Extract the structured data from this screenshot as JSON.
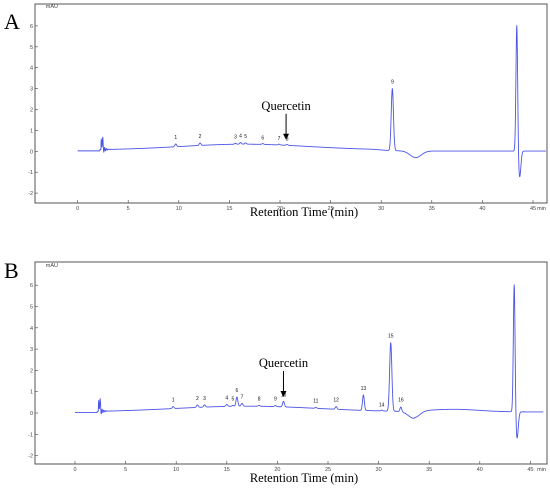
{
  "chart_data": [
    {
      "panel": "A",
      "type": "line",
      "xlabel": "Retention Time (min)",
      "x_unit": "min",
      "y_unit": "mAU",
      "xlim": [
        0,
        46.5
      ],
      "ylim": [
        -2,
        7
      ],
      "xticks": [
        0,
        5,
        10,
        15,
        20,
        25,
        30,
        35,
        40,
        45
      ],
      "yticks": [
        -2,
        -1,
        0,
        1,
        2,
        3,
        4,
        5,
        6
      ],
      "annotation": {
        "text": "Quercetin",
        "x": 20.6
      },
      "peaks": [
        {
          "label": "1",
          "x": 9.7,
          "y": 0.35
        },
        {
          "label": "2",
          "x": 12.1,
          "y": 0.4
        },
        {
          "label": "3",
          "x": 15.6,
          "y": 0.38
        },
        {
          "label": "4",
          "x": 16.1,
          "y": 0.42
        },
        {
          "label": "5",
          "x": 16.6,
          "y": 0.4
        },
        {
          "label": "6",
          "x": 18.3,
          "y": 0.32
        },
        {
          "label": "7",
          "x": 19.9,
          "y": 0.3
        },
        {
          "label": "8",
          "x": 20.7,
          "y": 0.28
        },
        {
          "label": "9",
          "x": 31.1,
          "y": 3.0
        }
      ],
      "other_peaks": [
        {
          "x": 43.4,
          "y": 6.1
        }
      ]
    },
    {
      "panel": "B",
      "type": "line",
      "xlabel": "Retention Time (min)",
      "x_unit": "min",
      "y_unit": "mAU",
      "xlim": [
        0,
        46.5
      ],
      "ylim": [
        -2,
        7
      ],
      "xticks": [
        0,
        5,
        10,
        15,
        20,
        25,
        30,
        35,
        40,
        45
      ],
      "yticks": [
        -2,
        -1,
        0,
        1,
        2,
        3,
        4,
        5,
        6
      ],
      "annotation": {
        "text": "Quercetin",
        "x": 20.6
      },
      "peaks": [
        {
          "label": "1",
          "x": 9.7,
          "y": 0.3
        },
        {
          "label": "2",
          "x": 12.1,
          "y": 0.38
        },
        {
          "label": "3",
          "x": 12.8,
          "y": 0.38
        },
        {
          "label": "4",
          "x": 15.0,
          "y": 0.4
        },
        {
          "label": "5",
          "x": 15.6,
          "y": 0.35
        },
        {
          "label": "6",
          "x": 16.0,
          "y": 0.75
        },
        {
          "label": "7",
          "x": 16.5,
          "y": 0.45
        },
        {
          "label": "8",
          "x": 18.2,
          "y": 0.35
        },
        {
          "label": "9",
          "x": 19.8,
          "y": 0.35
        },
        {
          "label": "10",
          "x": 20.6,
          "y": 0.55
        },
        {
          "label": "11",
          "x": 23.8,
          "y": 0.25
        },
        {
          "label": "12",
          "x": 25.8,
          "y": 0.3
        },
        {
          "label": "13",
          "x": 28.5,
          "y": 0.85
        },
        {
          "label": "14",
          "x": 30.3,
          "y": 0.08
        },
        {
          "label": "15",
          "x": 31.2,
          "y": 3.3
        },
        {
          "label": "16",
          "x": 32.2,
          "y": 0.3
        }
      ],
      "other_peaks": [
        {
          "x": 43.4,
          "y": 6.1
        }
      ]
    }
  ]
}
